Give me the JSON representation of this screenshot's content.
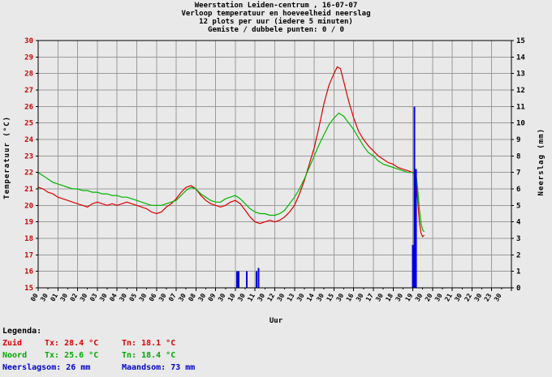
{
  "header": {
    "line1": "Weerstation Leiden-centrum , 16-07-07",
    "line2": "Verloop temperatuur en hoeveelheid neerslag",
    "line3": "12 plots per uur (iedere 5 minuten)",
    "line4": "Gemiste / dubbele punten: 0 / 0"
  },
  "legend": {
    "heading": "Legenda:",
    "rows": [
      {
        "name": "Zuid",
        "tx": "Tx: 28.4 °C",
        "tn": "Tn: 18.1 °C",
        "color": "#dd0000"
      },
      {
        "name": "Noord",
        "tx": "Tx: 25.6 °C",
        "tn": "Tn: 18.4 °C",
        "color": "#00aa00"
      }
    ],
    "precip_sum": "Neerslagsom: 26 mm",
    "month_sum": "Maandsom: 73 mm",
    "precip_color": "#0000cc"
  },
  "chart_data": {
    "type": "line+bar",
    "title": "Weerstation Leiden-centrum , 16-07-07",
    "x_axis": {
      "label": "Uur",
      "min": 0,
      "max": 24,
      "grid": true,
      "hour_labels": [
        "00",
        "01",
        "02",
        "03",
        "04",
        "05",
        "06",
        "07",
        "08",
        "09",
        "10",
        "11",
        "12",
        "13",
        "14",
        "15",
        "16",
        "17",
        "18",
        "19",
        "20",
        "21",
        "22",
        "23"
      ],
      "half_label": "30"
    },
    "y_left": {
      "label": "Temperatuur (°C)",
      "min": 15,
      "max": 30,
      "step": 1,
      "tick_color": "#cc0000"
    },
    "y_right": {
      "label": "Neerslag (mm)",
      "min": 0,
      "max": 15,
      "step": 1,
      "tick_color": "#000000"
    },
    "series": [
      {
        "name": "Zuid",
        "color": "#dd0000",
        "axis": "left",
        "points": [
          [
            0,
            21.1
          ],
          [
            0.25,
            21.0
          ],
          [
            0.5,
            20.8
          ],
          [
            0.75,
            20.7
          ],
          [
            1,
            20.5
          ],
          [
            1.25,
            20.4
          ],
          [
            1.5,
            20.3
          ],
          [
            1.75,
            20.2
          ],
          [
            2,
            20.1
          ],
          [
            2.25,
            20.0
          ],
          [
            2.5,
            19.9
          ],
          [
            2.75,
            20.1
          ],
          [
            3,
            20.2
          ],
          [
            3.25,
            20.1
          ],
          [
            3.5,
            20.0
          ],
          [
            3.75,
            20.1
          ],
          [
            4,
            20.0
          ],
          [
            4.25,
            20.1
          ],
          [
            4.5,
            20.2
          ],
          [
            4.75,
            20.1
          ],
          [
            5,
            20.0
          ],
          [
            5.25,
            19.9
          ],
          [
            5.5,
            19.8
          ],
          [
            5.75,
            19.6
          ],
          [
            6,
            19.5
          ],
          [
            6.25,
            19.6
          ],
          [
            6.5,
            19.9
          ],
          [
            6.75,
            20.1
          ],
          [
            7,
            20.4
          ],
          [
            7.25,
            20.8
          ],
          [
            7.5,
            21.1
          ],
          [
            7.75,
            21.2
          ],
          [
            8,
            21.0
          ],
          [
            8.25,
            20.6
          ],
          [
            8.5,
            20.3
          ],
          [
            8.75,
            20.1
          ],
          [
            9,
            20.0
          ],
          [
            9.25,
            19.9
          ],
          [
            9.5,
            20.0
          ],
          [
            9.75,
            20.2
          ],
          [
            10,
            20.3
          ],
          [
            10.25,
            20.1
          ],
          [
            10.5,
            19.7
          ],
          [
            10.75,
            19.3
          ],
          [
            11,
            19.0
          ],
          [
            11.25,
            18.9
          ],
          [
            11.5,
            19.0
          ],
          [
            11.75,
            19.1
          ],
          [
            12,
            19.0
          ],
          [
            12.25,
            19.1
          ],
          [
            12.5,
            19.3
          ],
          [
            12.75,
            19.6
          ],
          [
            13,
            20.0
          ],
          [
            13.25,
            20.7
          ],
          [
            13.5,
            21.5
          ],
          [
            13.75,
            22.5
          ],
          [
            14,
            23.5
          ],
          [
            14.25,
            24.8
          ],
          [
            14.5,
            26.2
          ],
          [
            14.75,
            27.3
          ],
          [
            15,
            28.0
          ],
          [
            15.17,
            28.4
          ],
          [
            15.33,
            28.3
          ],
          [
            15.5,
            27.5
          ],
          [
            15.75,
            26.3
          ],
          [
            16,
            25.3
          ],
          [
            16.25,
            24.5
          ],
          [
            16.5,
            24.0
          ],
          [
            16.75,
            23.6
          ],
          [
            17,
            23.3
          ],
          [
            17.25,
            23.0
          ],
          [
            17.5,
            22.8
          ],
          [
            17.75,
            22.6
          ],
          [
            18,
            22.5
          ],
          [
            18.25,
            22.3
          ],
          [
            18.5,
            22.2
          ],
          [
            18.75,
            22.1
          ],
          [
            19,
            22.0
          ],
          [
            19.08,
            21.9
          ],
          [
            19.17,
            21.5
          ],
          [
            19.25,
            20.3
          ],
          [
            19.33,
            19.0
          ],
          [
            19.42,
            18.3
          ],
          [
            19.5,
            18.1
          ],
          [
            19.58,
            18.2
          ]
        ]
      },
      {
        "name": "Noord",
        "color": "#00b400",
        "axis": "left",
        "points": [
          [
            0,
            22.0
          ],
          [
            0.25,
            21.8
          ],
          [
            0.5,
            21.6
          ],
          [
            0.75,
            21.4
          ],
          [
            1,
            21.3
          ],
          [
            1.25,
            21.2
          ],
          [
            1.5,
            21.1
          ],
          [
            1.75,
            21.0
          ],
          [
            2,
            21.0
          ],
          [
            2.25,
            20.9
          ],
          [
            2.5,
            20.9
          ],
          [
            2.75,
            20.8
          ],
          [
            3,
            20.8
          ],
          [
            3.25,
            20.7
          ],
          [
            3.5,
            20.7
          ],
          [
            3.75,
            20.6
          ],
          [
            4,
            20.6
          ],
          [
            4.25,
            20.5
          ],
          [
            4.5,
            20.5
          ],
          [
            4.75,
            20.4
          ],
          [
            5,
            20.3
          ],
          [
            5.25,
            20.2
          ],
          [
            5.5,
            20.1
          ],
          [
            5.75,
            20.0
          ],
          [
            6,
            20.0
          ],
          [
            6.25,
            20.0
          ],
          [
            6.5,
            20.1
          ],
          [
            6.75,
            20.2
          ],
          [
            7,
            20.3
          ],
          [
            7.25,
            20.6
          ],
          [
            7.5,
            20.9
          ],
          [
            7.75,
            21.1
          ],
          [
            8,
            21.0
          ],
          [
            8.25,
            20.7
          ],
          [
            8.5,
            20.5
          ],
          [
            8.75,
            20.3
          ],
          [
            9,
            20.2
          ],
          [
            9.25,
            20.2
          ],
          [
            9.5,
            20.4
          ],
          [
            9.75,
            20.5
          ],
          [
            10,
            20.6
          ],
          [
            10.25,
            20.4
          ],
          [
            10.5,
            20.1
          ],
          [
            10.75,
            19.8
          ],
          [
            11,
            19.6
          ],
          [
            11.25,
            19.5
          ],
          [
            11.5,
            19.5
          ],
          [
            11.75,
            19.4
          ],
          [
            12,
            19.4
          ],
          [
            12.25,
            19.5
          ],
          [
            12.5,
            19.7
          ],
          [
            12.75,
            20.1
          ],
          [
            13,
            20.5
          ],
          [
            13.25,
            21.0
          ],
          [
            13.5,
            21.6
          ],
          [
            13.75,
            22.3
          ],
          [
            14,
            23.0
          ],
          [
            14.25,
            23.7
          ],
          [
            14.5,
            24.3
          ],
          [
            14.75,
            24.9
          ],
          [
            15,
            25.3
          ],
          [
            15.25,
            25.6
          ],
          [
            15.5,
            25.4
          ],
          [
            15.75,
            25.0
          ],
          [
            16,
            24.6
          ],
          [
            16.25,
            24.1
          ],
          [
            16.5,
            23.6
          ],
          [
            16.75,
            23.2
          ],
          [
            17,
            23.0
          ],
          [
            17.25,
            22.7
          ],
          [
            17.5,
            22.5
          ],
          [
            17.75,
            22.4
          ],
          [
            18,
            22.3
          ],
          [
            18.25,
            22.2
          ],
          [
            18.5,
            22.1
          ],
          [
            18.75,
            22.0
          ],
          [
            19,
            22.0
          ],
          [
            19.08,
            21.9
          ],
          [
            19.17,
            21.8
          ],
          [
            19.25,
            21.0
          ],
          [
            19.33,
            19.8
          ],
          [
            19.42,
            18.9
          ],
          [
            19.5,
            18.5
          ],
          [
            19.58,
            18.4
          ]
        ]
      }
    ],
    "bars": {
      "name": "Neerslag",
      "color": "#0000dd",
      "axis": "right",
      "bar_minutes": 5,
      "points": [
        [
          10.083,
          1.0
        ],
        [
          10.167,
          1.0
        ],
        [
          10.583,
          1.0
        ],
        [
          11.083,
          1.0
        ],
        [
          11.167,
          1.2
        ],
        [
          19.0,
          2.6
        ],
        [
          19.083,
          11.0
        ],
        [
          19.167,
          7.2
        ]
      ]
    }
  }
}
